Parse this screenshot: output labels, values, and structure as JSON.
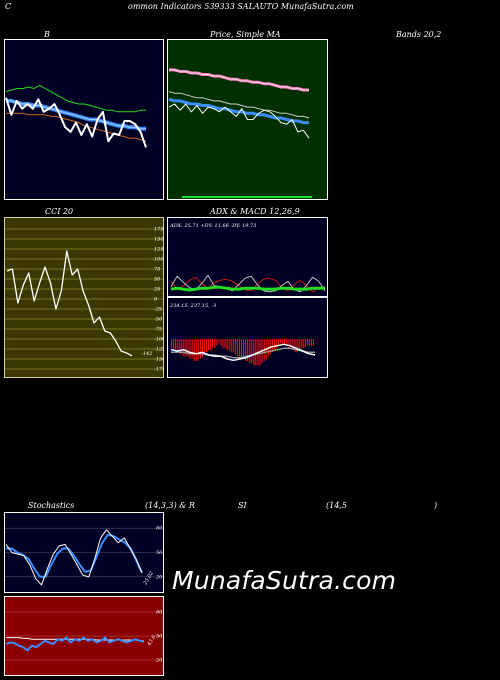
{
  "header": {
    "c_letter": "C",
    "title_rest": "ommon  Indicators 539333 SALAUTO MunafaSutra.com"
  },
  "labels": {
    "bb_b": "B",
    "price_sma": "Price,  Simple  MA",
    "bands": "Bands 20,2",
    "cci": "CCI 20",
    "adx_macd": "ADX  & MACD 12,26,9",
    "stoch_a": "Stochastics",
    "stoch_b": "(14,3,3) & R",
    "stoch_c": "SI",
    "stoch_d": "(14,5",
    "stoch_e": ")"
  },
  "readouts": {
    "adx": "ADX: 25.71  +DY: 11.66  -DY: 19.73",
    "macd": "234.15,  237.15,  -3",
    "cci_value": "-142",
    "stoch_value": "25.02",
    "rsi_value": "43.6"
  },
  "watermark": "MunafaSutra.com",
  "colors": {
    "bb_bg": "#000025",
    "sma_bg": "#003000",
    "cci_bg": "#3a3800",
    "adx_bg": "#000025",
    "stoch_bg": "#000025",
    "rsi_bg": "#8a0000",
    "blue": "#3a8cff",
    "green": "#22dd22",
    "orange": "#d2691e",
    "pink": "#ff80c0",
    "red": "#ff1010"
  },
  "chart_data": [
    {
      "type": "line",
      "name": "bollinger",
      "title": "Bollinger Bands 20,2",
      "ylim": [
        0,
        100
      ],
      "series": [
        {
          "name": "upper",
          "values": [
            68,
            69,
            70,
            70,
            71,
            70,
            72,
            70,
            68,
            66,
            64,
            62,
            61,
            60,
            60,
            59,
            58,
            57,
            56,
            56,
            55,
            55,
            55,
            55,
            56,
            56
          ]
        },
        {
          "name": "middle",
          "values": [
            62,
            62,
            61,
            60,
            60,
            59,
            59,
            58,
            57,
            56,
            55,
            54,
            53,
            52,
            51,
            50,
            50,
            49,
            48,
            47,
            46,
            46,
            45,
            45,
            44,
            44
          ]
        },
        {
          "name": "lower",
          "values": [
            54,
            54,
            54,
            54,
            53,
            53,
            53,
            53,
            52,
            52,
            51,
            50,
            49,
            48,
            46,
            45,
            44,
            43,
            42,
            41,
            40,
            39,
            38,
            38,
            37,
            36
          ]
        },
        {
          "name": "price",
          "values": [
            64,
            53,
            62,
            57,
            60,
            57,
            63,
            55,
            57,
            60,
            53,
            45,
            42,
            48,
            40,
            47,
            39,
            50,
            55,
            36,
            41,
            40,
            49,
            49,
            47,
            42,
            32
          ]
        }
      ]
    },
    {
      "type": "line",
      "name": "price_sma",
      "title": "Price, Simple MA",
      "ylim": [
        0,
        100
      ],
      "series": [
        {
          "name": "price",
          "values": [
            58,
            60,
            56,
            60,
            55,
            59,
            54,
            58,
            57,
            55,
            58,
            55,
            52,
            57,
            50,
            50,
            54,
            56,
            55,
            52,
            48,
            47,
            50,
            42,
            43,
            38
          ]
        },
        {
          "name": "ma_long",
          "values": [
            82,
            82,
            81,
            81,
            80,
            80,
            79,
            79,
            78,
            78,
            77,
            76,
            76,
            75,
            75,
            74,
            74,
            73,
            73,
            72,
            71,
            71,
            70,
            70,
            69,
            69
          ]
        },
        {
          "name": "ma_mid",
          "values": [
            63,
            62,
            62,
            61,
            60,
            60,
            59,
            59,
            58,
            57,
            57,
            56,
            55,
            55,
            54,
            54,
            53,
            53,
            52,
            51,
            51,
            50,
            49,
            49,
            48,
            48
          ]
        },
        {
          "name": "ma_short",
          "values": [
            68,
            67,
            67,
            66,
            65,
            64,
            64,
            63,
            62,
            62,
            61,
            60,
            60,
            59,
            58,
            58,
            57,
            56,
            56,
            55,
            54,
            54,
            53,
            52,
            52,
            51
          ]
        }
      ]
    },
    {
      "type": "line",
      "name": "cci",
      "title": "CCI 20",
      "yticks": [
        175,
        150,
        125,
        100,
        75,
        50,
        25,
        0,
        -25,
        -50,
        -75,
        -100,
        -125,
        -150,
        -175
      ],
      "ylim": [
        -175,
        175
      ],
      "series": [
        {
          "name": "cci",
          "values": [
            70,
            75,
            -10,
            35,
            65,
            -5,
            40,
            80,
            40,
            -25,
            20,
            120,
            60,
            75,
            20,
            -15,
            -60,
            -45,
            -80,
            -85,
            -105,
            -130,
            -135,
            -142
          ]
        }
      ]
    },
    {
      "type": "line",
      "name": "adx",
      "title": "ADX 14",
      "ylim": [
        0,
        100
      ],
      "series": [
        {
          "name": "adx",
          "values": [
            25,
            26,
            25,
            24,
            25,
            26,
            26,
            27,
            27,
            26,
            25,
            25,
            26,
            26,
            26,
            25,
            25,
            25,
            26,
            26,
            25,
            25,
            25,
            26,
            26,
            26
          ]
        },
        {
          "name": "plus_di",
          "values": [
            20,
            40,
            28,
            18,
            14,
            26,
            42,
            22,
            20,
            16,
            12,
            24,
            36,
            40,
            24,
            12,
            10,
            12,
            22,
            30,
            14,
            10,
            22,
            38,
            30,
            12
          ]
        },
        {
          "name": "minus_di",
          "values": [
            30,
            14,
            22,
            32,
            38,
            26,
            16,
            28,
            32,
            34,
            30,
            22,
            14,
            12,
            24,
            34,
            36,
            32,
            18,
            12,
            24,
            32,
            22,
            10,
            18,
            20
          ]
        }
      ]
    },
    {
      "type": "bar",
      "name": "macd",
      "title": "MACD 12,26,9",
      "ylim": [
        -15,
        15
      ],
      "series": [
        {
          "name": "histogram",
          "values": [
            -4,
            -5,
            -6,
            -6,
            -7,
            -7,
            -8,
            -8,
            -8,
            -9,
            -9,
            -10,
            -10,
            -10,
            -9,
            -8,
            -7,
            -6,
            -5,
            -5,
            -4,
            -4,
            -3,
            -2,
            -3,
            -4,
            -4,
            -5,
            -5,
            -6,
            -6,
            -7,
            -8,
            -8,
            -9,
            -9,
            -10,
            -10,
            -11,
            -11,
            -12,
            -12,
            -12,
            -12,
            -11,
            -10,
            -9,
            -8,
            -7,
            -6,
            -5,
            -4,
            -3,
            -2,
            -2,
            -3,
            -3,
            -4,
            -4,
            -5,
            -6,
            -6,
            -5,
            -5,
            -4,
            -4,
            -3,
            -3,
            -3,
            -3
          ]
        },
        {
          "name": "macd",
          "values": [
            -2,
            -3,
            -2,
            -4,
            -5,
            -4,
            -6,
            -7,
            -7,
            -9,
            -10,
            -9,
            -8,
            -6,
            -4,
            -2,
            0,
            1,
            2,
            1,
            -1,
            -3,
            -5,
            -6
          ]
        },
        {
          "name": "signal",
          "values": [
            -4,
            -4,
            -4,
            -5,
            -5,
            -5,
            -6,
            -6,
            -7,
            -7,
            -8,
            -8,
            -7,
            -6,
            -5,
            -4,
            -3,
            -2,
            -1,
            -1,
            -2,
            -3,
            -4,
            -4
          ]
        }
      ]
    },
    {
      "type": "line",
      "name": "stochastics",
      "title": "Stochastics (14,3,3)",
      "yticks": [
        80,
        50,
        20
      ],
      "ylim": [
        0,
        100
      ],
      "series": [
        {
          "name": "k",
          "values": [
            60,
            50,
            48,
            46,
            35,
            18,
            10,
            30,
            48,
            58,
            60,
            48,
            35,
            22,
            20,
            42,
            68,
            78,
            70,
            62,
            68,
            55,
            42,
            25
          ]
        },
        {
          "name": "d",
          "values": [
            55,
            55,
            50,
            47,
            42,
            30,
            20,
            20,
            35,
            48,
            55,
            55,
            46,
            35,
            26,
            28,
            45,
            62,
            72,
            70,
            66,
            62,
            55,
            40,
            25
          ]
        }
      ]
    },
    {
      "type": "line",
      "name": "rsi",
      "title": "RSI (14,5)",
      "yticks": [
        80,
        50,
        20
      ],
      "ylim": [
        0,
        100
      ],
      "series": [
        {
          "name": "rsi",
          "values": [
            40,
            42,
            41,
            38,
            36,
            32,
            38,
            36,
            40,
            44,
            42,
            40,
            46,
            44,
            48,
            42,
            46,
            44,
            48,
            44,
            46,
            42,
            44,
            48,
            42,
            44,
            46,
            44,
            42,
            44,
            46,
            44,
            43
          ]
        },
        {
          "name": "rsi_avg",
          "values": [
            48,
            48,
            48,
            48,
            47,
            47,
            46,
            46,
            46,
            46,
            46,
            46,
            46,
            46,
            46,
            46,
            46,
            46,
            46,
            46,
            46,
            45,
            45,
            45,
            45,
            45,
            45,
            45,
            45,
            45,
            45,
            44,
            44
          ]
        }
      ]
    }
  ]
}
